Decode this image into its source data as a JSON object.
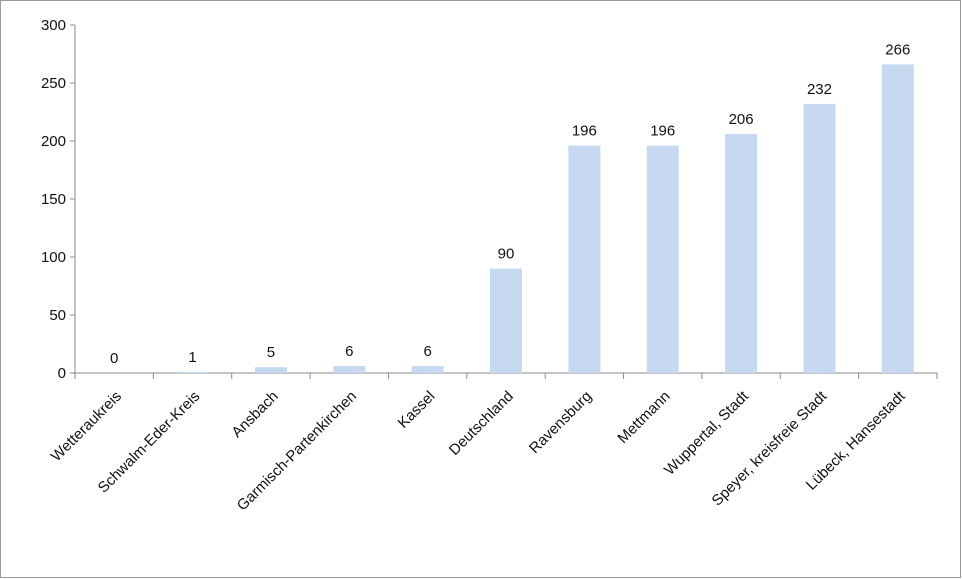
{
  "chart_data": {
    "type": "bar",
    "categories": [
      "Wetteraukreis",
      "Schwalm-Eder-Kreis",
      "Ansbach",
      "Garmisch-Partenkirchen",
      "Kassel",
      "Deutschland",
      "Ravensburg",
      "Mettmann",
      "Wuppertal, Stadt",
      "Speyer, kreisfreie Stadt",
      "Lübeck, Hansestadt"
    ],
    "values": [
      0,
      1,
      5,
      6,
      6,
      90,
      196,
      196,
      206,
      232,
      266
    ],
    "color": "#c6d9f1",
    "ylim": [
      0,
      300
    ],
    "yticks": [
      0,
      50,
      100,
      150,
      200,
      250,
      300
    ],
    "grid": false
  }
}
